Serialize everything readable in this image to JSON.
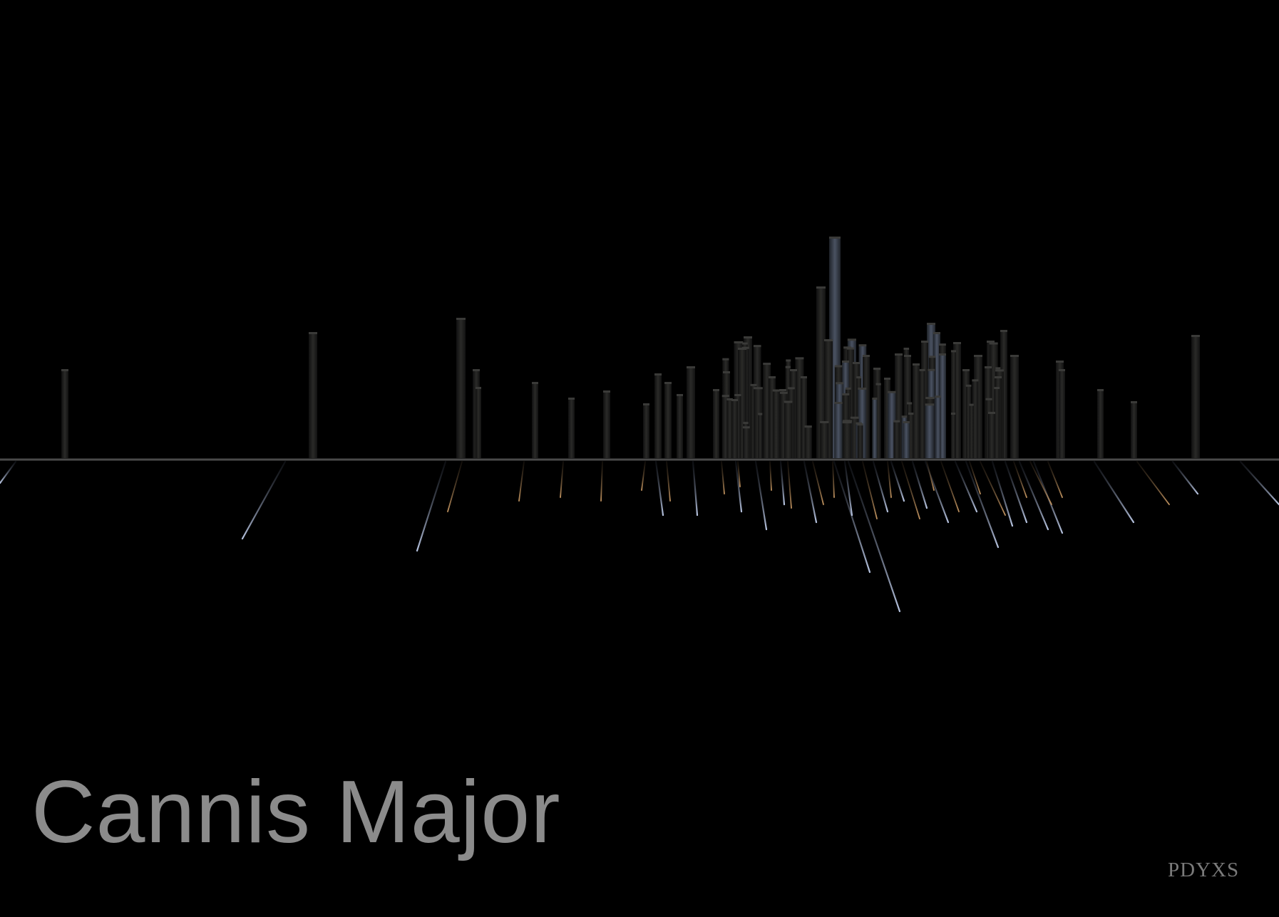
{
  "title": "Cannis Major",
  "signature": "PDYXS",
  "colors": {
    "background": "#000000",
    "horizon": "#4a4a4a",
    "bar_dark": "#1c1c1a",
    "bar_light": "#3e4450",
    "highlight_blue": "#aab7d4",
    "highlight_orange": "#b08a5a",
    "title_text": "#8b8b8b",
    "signature_text": "#7a7a7a"
  },
  "scene": {
    "bar_count": 118,
    "reflection_style": "streaks"
  }
}
